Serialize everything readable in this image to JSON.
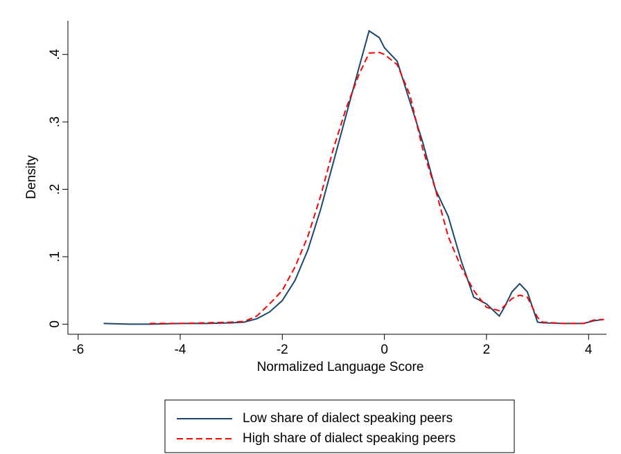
{
  "chart_data": {
    "type": "line",
    "xlabel": "Normalized Language Score",
    "ylabel": "Density",
    "x": [
      -5.5,
      -5,
      -4.6,
      -4,
      -3.5,
      -3,
      -2.75,
      -2.5,
      -2.25,
      -2,
      -1.75,
      -1.5,
      -1.25,
      -1,
      -0.75,
      -0.5,
      -0.3,
      -0.1,
      0,
      0.25,
      0.5,
      0.75,
      1,
      1.25,
      1.5,
      1.75,
      2,
      2.25,
      2.35,
      2.5,
      2.65,
      2.8,
      3,
      3.1,
      3.5,
      3.9,
      4.1,
      4.3
    ],
    "series": [
      {
        "name": "Low share of dialect speaking peers",
        "color": "#1a476f",
        "dash": "solid",
        "values": [
          0.001,
          0,
          0,
          0.001,
          0.001,
          0.002,
          0.003,
          0.008,
          0.018,
          0.035,
          0.065,
          0.11,
          0.17,
          0.24,
          0.31,
          0.38,
          0.435,
          0.425,
          0.41,
          0.39,
          0.33,
          0.27,
          0.2,
          0.16,
          0.095,
          0.04,
          0.03,
          0.012,
          0.025,
          0.048,
          0.06,
          0.048,
          0.003,
          0.002,
          0.001,
          0.001,
          0.005,
          0.007
        ]
      },
      {
        "name": "High share of dialect speaking peers",
        "color": "#ff0000",
        "dash": "dashed",
        "values": [
          null,
          null,
          0.001,
          0.001,
          0.002,
          0.003,
          0.004,
          0.012,
          0.03,
          0.05,
          0.085,
          0.13,
          0.19,
          0.26,
          0.32,
          0.37,
          0.402,
          0.403,
          0.4,
          0.385,
          0.34,
          0.26,
          0.2,
          0.13,
          0.085,
          0.05,
          0.025,
          0.02,
          0.027,
          0.038,
          0.043,
          0.04,
          0.01,
          0.003,
          0.001,
          0.001,
          0.006,
          0.007
        ]
      }
    ],
    "xlim": [
      -6.2,
      4.35
    ],
    "xticks": [
      -6,
      -4,
      -2,
      0,
      2,
      4
    ],
    "ylim": [
      -0.015,
      0.45
    ],
    "yticks": [
      0,
      {
        "value": 0.1,
        "label": ".1"
      },
      {
        "value": 0.2,
        "label": ".2"
      },
      {
        "value": 0.3,
        "label": ".3"
      },
      {
        "value": 0.4,
        "label": ".4"
      }
    ],
    "legend": "bottom"
  }
}
